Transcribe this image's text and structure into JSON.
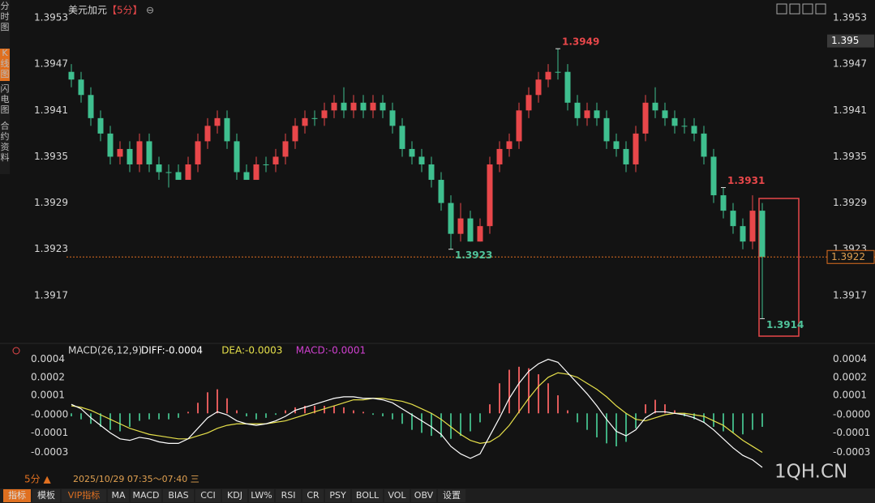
{
  "sidebar": [
    "分时图",
    "K线图",
    "闪电图",
    "合约资料"
  ],
  "header": {
    "symbol": "美元加元",
    "period": "【5分】"
  },
  "chart_data": [
    {
      "type": "candlestick",
      "open": [
        1.3946,
        1.3945,
        1.3943,
        1.394,
        1.3938,
        1.3935,
        1.3936,
        1.3934,
        1.3937,
        1.3934,
        1.3933,
        1.3933,
        1.3932,
        1.3934,
        1.3937,
        1.3939,
        1.394,
        1.3937,
        1.3933,
        1.3932,
        1.3934,
        1.3934,
        1.3935,
        1.3937,
        1.3939,
        1.394,
        1.394,
        1.3941,
        1.3942,
        1.3941,
        1.3942,
        1.3941,
        1.3942,
        1.3941,
        1.3939,
        1.3936,
        1.3935,
        1.3934,
        1.3932,
        1.3929,
        1.3925,
        1.3927,
        1.3924,
        1.3926,
        1.3934,
        1.3936,
        1.3937,
        1.3941,
        1.3943,
        1.3945,
        1.3946,
        1.3946,
        1.3942,
        1.394,
        1.3941,
        1.394,
        1.3937,
        1.3936,
        1.3934,
        1.3938,
        1.3942,
        1.3941,
        1.394,
        1.3939,
        1.3939,
        1.3938,
        1.3935,
        1.393,
        1.3928,
        1.3926,
        1.3924,
        1.3928
      ],
      "high": [
        1.3947,
        1.3946,
        1.3944,
        1.3941,
        1.3939,
        1.3937,
        1.3937,
        1.3938,
        1.3938,
        1.3935,
        1.3934,
        1.3934,
        1.3935,
        1.3938,
        1.394,
        1.3941,
        1.3941,
        1.3938,
        1.3934,
        1.3935,
        1.3935,
        1.3936,
        1.3938,
        1.394,
        1.3941,
        1.3941,
        1.3942,
        1.3943,
        1.3944,
        1.3943,
        1.3943,
        1.3943,
        1.3943,
        1.3942,
        1.394,
        1.3937,
        1.3936,
        1.3935,
        1.3933,
        1.393,
        1.3929,
        1.3928,
        1.3927,
        1.3935,
        1.3937,
        1.3938,
        1.3942,
        1.3944,
        1.3946,
        1.3947,
        1.3949,
        1.3947,
        1.3943,
        1.3942,
        1.3942,
        1.3941,
        1.3938,
        1.3937,
        1.3939,
        1.3943,
        1.3944,
        1.3942,
        1.3941,
        1.394,
        1.394,
        1.3939,
        1.3936,
        1.3931,
        1.3929,
        1.3927,
        1.393,
        1.3929
      ],
      "low": [
        1.3944,
        1.3942,
        1.3939,
        1.3937,
        1.3934,
        1.3934,
        1.3933,
        1.3933,
        1.3933,
        1.3932,
        1.3931,
        1.3932,
        1.3932,
        1.3933,
        1.3936,
        1.3938,
        1.3936,
        1.3932,
        1.3932,
        1.3932,
        1.3933,
        1.3933,
        1.3934,
        1.3936,
        1.3938,
        1.3939,
        1.3939,
        1.394,
        1.394,
        1.394,
        1.394,
        1.394,
        1.394,
        1.3938,
        1.3935,
        1.3934,
        1.3933,
        1.3931,
        1.3928,
        1.3923,
        1.3924,
        1.3924,
        1.3924,
        1.3925,
        1.3933,
        1.3935,
        1.3936,
        1.394,
        1.3942,
        1.3944,
        1.3945,
        1.3941,
        1.3939,
        1.3939,
        1.3939,
        1.3936,
        1.3935,
        1.3933,
        1.3933,
        1.3937,
        1.394,
        1.3939,
        1.3938,
        1.3938,
        1.3937,
        1.3934,
        1.3929,
        1.3927,
        1.3925,
        1.3923,
        1.3923,
        1.3914
      ],
      "close": [
        1.3945,
        1.3943,
        1.394,
        1.3938,
        1.3935,
        1.3936,
        1.3934,
        1.3937,
        1.3934,
        1.3933,
        1.3933,
        1.3932,
        1.3934,
        1.3937,
        1.3939,
        1.394,
        1.3937,
        1.3933,
        1.3932,
        1.3934,
        1.3934,
        1.3935,
        1.3937,
        1.3939,
        1.394,
        1.394,
        1.3941,
        1.3942,
        1.3941,
        1.3942,
        1.3941,
        1.3942,
        1.3941,
        1.3939,
        1.3936,
        1.3935,
        1.3934,
        1.3932,
        1.3929,
        1.3925,
        1.3927,
        1.3924,
        1.3926,
        1.3934,
        1.3936,
        1.3937,
        1.3941,
        1.3943,
        1.3945,
        1.3946,
        1.3946,
        1.3942,
        1.394,
        1.3941,
        1.394,
        1.3937,
        1.3936,
        1.3934,
        1.3938,
        1.3942,
        1.3941,
        1.394,
        1.3939,
        1.3939,
        1.3938,
        1.3935,
        1.393,
        1.3928,
        1.3926,
        1.3924,
        1.3928,
        1.3922
      ],
      "up_color": "#e8474a",
      "down_color": "#3fbf8f",
      "ylim": [
        1.3911,
        1.3955
      ],
      "yticks": [
        1.3953,
        1.3947,
        1.3941,
        1.3935,
        1.3929,
        1.3923,
        1.3917
      ],
      "last_price": 1.3922,
      "cursor_price": 1.395,
      "annotations": [
        1.3931,
        1.3923,
        1.3949,
        1.3914
      ]
    },
    {
      "type": "macd",
      "title": "MACD(26,12,9)",
      "ylim": [
        -0.00043,
        0.00046
      ],
      "yticks": [
        {
          "value": 0.00036,
          "label": "0.0004"
        },
        {
          "value": 0.00024,
          "label": "0.0002"
        },
        {
          "value": 0.00012,
          "label": "0.0001"
        },
        {
          "value": -1e-05,
          "label": "-0.0000"
        },
        {
          "value": -0.00013,
          "label": "-0.0001"
        },
        {
          "value": -0.00026,
          "label": "-0.0003"
        }
      ],
      "series": [
        {
          "name": "DIFF:-0.0004",
          "color": "#ffffff",
          "values": [
            6e-05,
            3e-05,
            -3e-05,
            -8e-05,
            -0.00013,
            -0.00017,
            -0.00018,
            -0.00016,
            -0.00017,
            -0.00019,
            -0.0002,
            -0.0002,
            -0.00017,
            -0.0001,
            -3e-05,
            1e-05,
            -1e-05,
            -5e-05,
            -7e-05,
            -8e-05,
            -7e-05,
            -5e-05,
            -2e-05,
            2e-05,
            4e-05,
            6e-05,
            8e-05,
            0.0001,
            0.00011,
            0.00011,
            0.0001,
            0.0001,
            9e-05,
            7e-05,
            3e-05,
            -1e-05,
            -5e-05,
            -9e-05,
            -0.00014,
            -0.00022,
            -0.00027,
            -0.0003,
            -0.00027,
            -0.00015,
            -3e-05,
            0.0001,
            0.0002,
            0.00028,
            0.00033,
            0.00036,
            0.00034,
            0.00027,
            0.0002,
            0.00013,
            5e-05,
            -4e-05,
            -0.00012,
            -0.00015,
            -0.00011,
            -3e-05,
            1e-05,
            1e-05,
            0,
            -1e-05,
            -3e-05,
            -6e-05,
            -0.00011,
            -0.00017,
            -0.00023,
            -0.00028,
            -0.00031,
            -0.00036
          ]
        },
        {
          "name": "DEA:-0.0003",
          "color": "#e6e04a",
          "values": [
            5e-05,
            4e-05,
            2e-05,
            -1e-05,
            -4e-05,
            -7e-05,
            -0.0001,
            -0.00012,
            -0.00014,
            -0.00015,
            -0.00016,
            -0.00017,
            -0.00017,
            -0.00015,
            -0.00013,
            -0.0001,
            -8e-05,
            -7e-05,
            -7e-05,
            -7e-05,
            -7e-05,
            -6e-05,
            -5e-05,
            -3e-05,
            -1e-05,
            1e-05,
            3e-05,
            5e-05,
            7e-05,
            9e-05,
            9e-05,
            0.0001,
            0.0001,
            9e-05,
            8e-05,
            6e-05,
            3e-05,
            0,
            -4e-05,
            -9e-05,
            -0.00014,
            -0.00018,
            -0.0002,
            -0.00019,
            -0.00015,
            -8e-05,
            1e-05,
            0.0001,
            0.00018,
            0.00024,
            0.00027,
            0.00026,
            0.00024,
            0.0002,
            0.00016,
            0.00011,
            5e-05,
            0,
            -4e-05,
            -5e-05,
            -3e-05,
            -1e-05,
            0,
            0,
            -1e-05,
            -2e-05,
            -5e-05,
            -8e-05,
            -0.00013,
            -0.00018,
            -0.00022,
            -0.00026
          ]
        },
        {
          "name": "MACD:-0.0001",
          "color": "#d040d0",
          "pos_color": "#e05a5a",
          "neg_color": "#3fae80",
          "values": [
            -2e-05,
            -4e-05,
            -7e-05,
            -9e-05,
            -0.00011,
            -0.00012,
            -9e-05,
            -5e-05,
            -4e-05,
            -4e-05,
            -4e-05,
            -3e-05,
            1e-05,
            7e-05,
            0.00014,
            0.00016,
            0.0001,
            2e-05,
            -2e-05,
            -4e-05,
            -3e-05,
            -1e-05,
            2e-05,
            4e-05,
            5e-05,
            5e-05,
            5e-05,
            5e-05,
            4e-05,
            2e-05,
            1e-05,
            -1e-05,
            -2e-05,
            -4e-05,
            -7e-05,
            -0.00011,
            -0.00013,
            -0.00015,
            -0.00016,
            -0.00017,
            -0.00015,
            -0.00012,
            -6e-05,
            6e-05,
            0.0002,
            0.00029,
            0.00031,
            0.0003,
            0.00026,
            0.0002,
            0.00012,
            2e-05,
            -6e-05,
            -0.00011,
            -0.00016,
            -0.0002,
            -0.00022,
            -0.00019,
            -0.0001,
            6e-05,
            9e-05,
            6e-05,
            2e-05,
            -2e-05,
            -4e-05,
            -6e-05,
            -9e-05,
            -0.00012,
            -0.00013,
            -0.00014,
            -0.00011,
            -9e-05
          ]
        }
      ]
    }
  ],
  "footer": {
    "period": "5分 ▲",
    "time": "2025/10/29 07:35～07:40 三",
    "tabs": [
      "指标",
      "模板",
      "VIP指标",
      "MA",
      "MACD",
      "BIAS",
      "CCI",
      "KDJ",
      "LW%",
      "RSI",
      "CR",
      "PSY",
      "BOLL",
      "VOL",
      "OBV",
      "设置"
    ]
  },
  "watermark": "1QH.CN"
}
